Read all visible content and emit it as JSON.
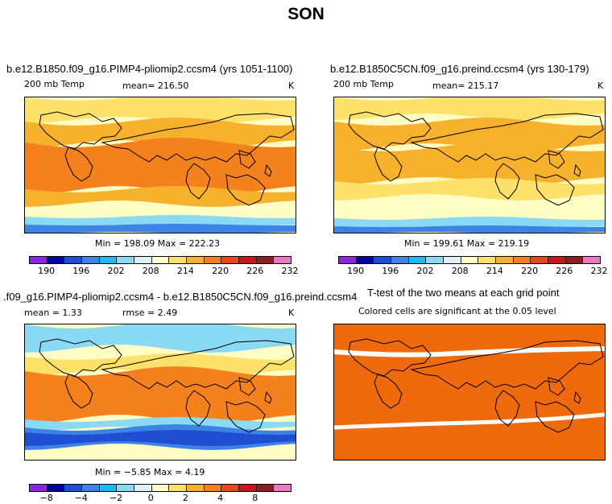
{
  "figure": {
    "title": "SON"
  },
  "panels": [
    {
      "case_title": "b.e12.B1850.f09_g16.PIMP4-pliomip2.ccsm4 (yrs 1051-1100)",
      "variable": "200 mb Temp",
      "stat": "mean= 216.50",
      "units": "K",
      "minmax": "Min = 198.09 Max = 222.23"
    },
    {
      "case_title": "b.e12.B1850C5CN.f09_g16.preind.ccsm4 (yrs 130-179)",
      "variable": "200 mb Temp",
      "stat": "mean= 215.17",
      "units": "K",
      "minmax": "Min = 199.61 Max = 219.19"
    },
    {
      "case_title": ".f09_g16.PIMP4-pliomip2.ccsm4 - b.e12.B1850C5CN.f09_g16.preind.ccsm4",
      "stat_mean": "mean =    1.33",
      "stat_rmse": "rmse =    2.49",
      "units": "K",
      "minmax": "Min =  −5.85 Max =    4.19"
    },
    {
      "case_title": "T-test of the two means at each grid point",
      "subtitle": "Colored cells are significant at the 0.05 level"
    }
  ],
  "colorbars": {
    "abs_colors": [
      "#8d24e0",
      "#0000a8",
      "#1f4ed2",
      "#3d83e6",
      "#1fb9f1",
      "#8ad9f5",
      "#ddf1f7",
      "#fffec4",
      "#fde16a",
      "#f8b12c",
      "#f5811e",
      "#e8471a",
      "#c8161c",
      "#8c1d20",
      "#e879c4"
    ],
    "abs_ticks": [
      "190",
      "196",
      "202",
      "208",
      "214",
      "220",
      "226",
      "232"
    ],
    "diff_colors": [
      "#8d24e0",
      "#0000a8",
      "#1f4ed2",
      "#3d83e6",
      "#1fb9f1",
      "#8ad9f5",
      "#ddf1f7",
      "#fffec4",
      "#fde16a",
      "#f8b12c",
      "#f5811e",
      "#e8471a",
      "#c8161c",
      "#8c1d20",
      "#e879c4"
    ],
    "diff_ticks": [
      "−8",
      "−4",
      "−2",
      "0",
      "2",
      "4",
      "8"
    ]
  },
  "map_colors": {
    "warm": "#f5811e",
    "orange": "#f8b12c",
    "yellow": "#fde16a",
    "pale": "#fffec4",
    "cyan": "#1fb9f1",
    "light_blue": "#8ad9f5",
    "blue": "#3d83e6",
    "deep_blue": "#1f4ed2",
    "red": "#e8471a",
    "ttest_fill": "#ef6a0c"
  }
}
